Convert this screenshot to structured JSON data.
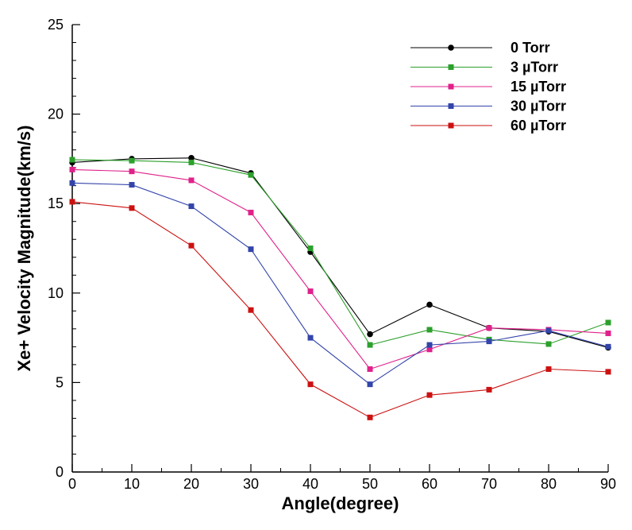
{
  "chart_data": {
    "type": "line",
    "title": "",
    "xlabel": "Angle(degree)",
    "ylabel": "Xe+ Velocity Magnitude(km/s)",
    "xlim": [
      0,
      90
    ],
    "ylim": [
      0,
      25
    ],
    "xticks": [
      0,
      10,
      20,
      30,
      40,
      50,
      60,
      70,
      80,
      90
    ],
    "yticks": [
      0,
      5,
      10,
      15,
      20,
      25
    ],
    "grid": false,
    "legend_position": "top-right",
    "x": [
      0,
      10,
      20,
      30,
      40,
      50,
      60,
      70,
      80,
      90
    ],
    "series": [
      {
        "name": "0 Torr",
        "color": "#000000",
        "values": [
          17.3,
          17.5,
          17.55,
          16.7,
          12.3,
          7.7,
          9.35,
          8.05,
          7.85,
          6.95
        ]
      },
      {
        "name": "3 µTorr",
        "color": "#2ca02c",
        "values": [
          17.45,
          17.4,
          17.3,
          16.6,
          12.5,
          7.1,
          7.95,
          7.4,
          7.15,
          8.35
        ]
      },
      {
        "name": "15 µTorr",
        "color": "#e0218a",
        "values": [
          16.9,
          16.8,
          16.3,
          14.5,
          10.1,
          5.75,
          6.85,
          8.05,
          7.95,
          7.75
        ]
      },
      {
        "name": "30 µTorr",
        "color": "#3344aa",
        "values": [
          16.15,
          16.05,
          14.85,
          12.45,
          7.5,
          4.9,
          7.1,
          7.3,
          7.9,
          7.0
        ]
      },
      {
        "name": "60 µTorr",
        "color": "#cc1111",
        "values": [
          15.1,
          14.75,
          12.65,
          9.05,
          4.9,
          3.05,
          4.3,
          4.6,
          5.75,
          5.6
        ]
      }
    ]
  }
}
